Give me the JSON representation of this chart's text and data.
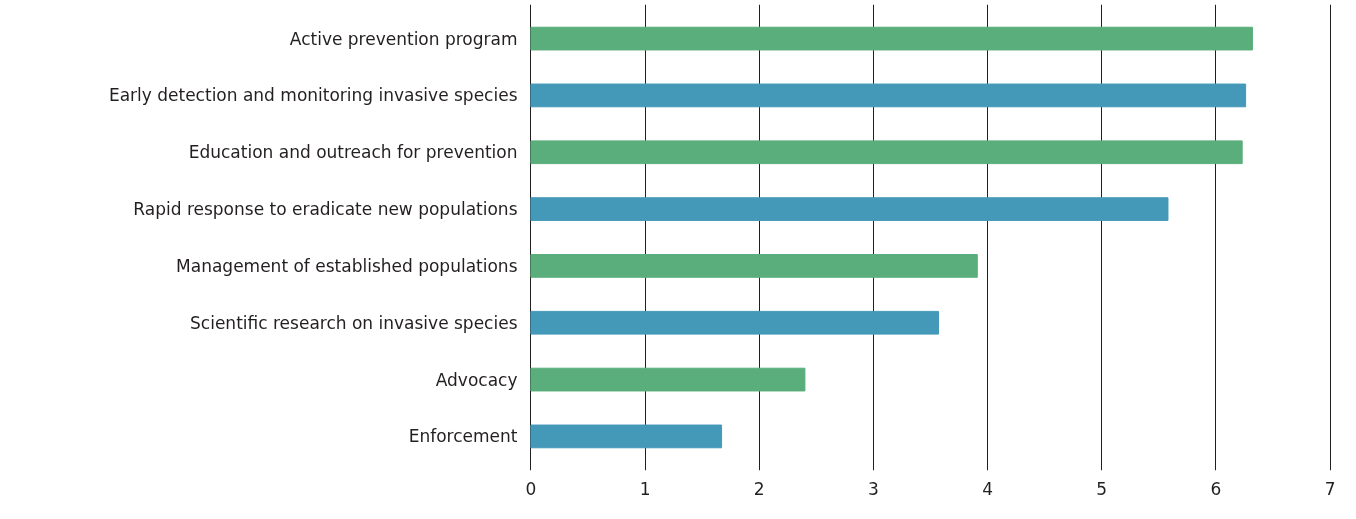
{
  "chart_data": {
    "type": "bar",
    "orientation": "horizontal",
    "categories": [
      "Active prevention program",
      "Early detection and monitoring invasive species",
      "Education and outreach for prevention",
      "Rapid response to eradicate new populations",
      "Management of established populations",
      "Scientific research on invasive species",
      "Advocacy",
      "Enforcement"
    ],
    "values": [
      6.32,
      6.26,
      6.23,
      5.58,
      3.91,
      3.57,
      2.4,
      1.67
    ],
    "colors": [
      "#5aae7c",
      "#4499b9",
      "#5aae7c",
      "#4499b9",
      "#5aae7c",
      "#4499b9",
      "#5aae7c",
      "#4499b9"
    ],
    "xlim": [
      0,
      7
    ],
    "xticks": [
      0,
      1,
      2,
      3,
      4,
      5,
      6,
      7
    ],
    "grid": "x"
  }
}
